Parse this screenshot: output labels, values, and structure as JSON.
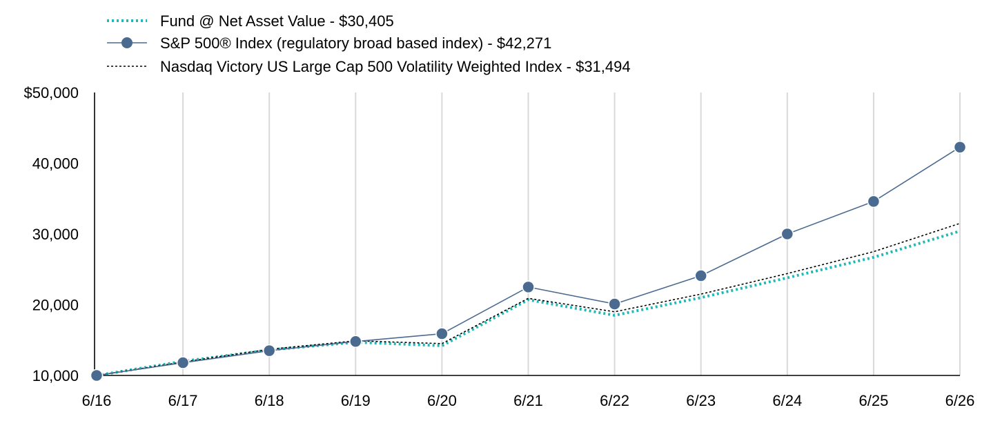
{
  "chart_data": {
    "type": "line",
    "categories": [
      "6/16",
      "6/17",
      "6/18",
      "6/19",
      "6/20",
      "6/21",
      "6/22",
      "6/23",
      "6/24",
      "6/25",
      "6/26"
    ],
    "y_tick_labels": [
      "$50,000",
      "40,000",
      "30,000",
      "20,000",
      "10,000"
    ],
    "y_ticks": [
      50000,
      40000,
      30000,
      20000,
      10000
    ],
    "ylim": [
      10000,
      50000
    ],
    "grid": "vertical",
    "legend_position": "top-left",
    "series": [
      {
        "name": "Fund @ Net Asset Value - $30,405",
        "color": "#20b8b8",
        "style": "dotted-thick",
        "values": [
          10000,
          12000,
          13600,
          14700,
          14200,
          20700,
          18500,
          21000,
          23800,
          26700,
          30405
        ]
      },
      {
        "name": "S&P 500® Index (regulatory broad based index) - $42,271",
        "color": "#4a6a8f",
        "style": "solid-markers",
        "values": [
          10000,
          11800,
          13500,
          14800,
          15900,
          22500,
          20100,
          24100,
          30000,
          34600,
          42271
        ]
      },
      {
        "name": "Nasdaq Victory US Large Cap 500 Volatility Weighted Index - $31,494",
        "color": "#000000",
        "style": "dotted-thin",
        "values": [
          10000,
          11900,
          13700,
          14900,
          14500,
          20900,
          19000,
          21500,
          24400,
          27500,
          31494
        ]
      }
    ]
  }
}
